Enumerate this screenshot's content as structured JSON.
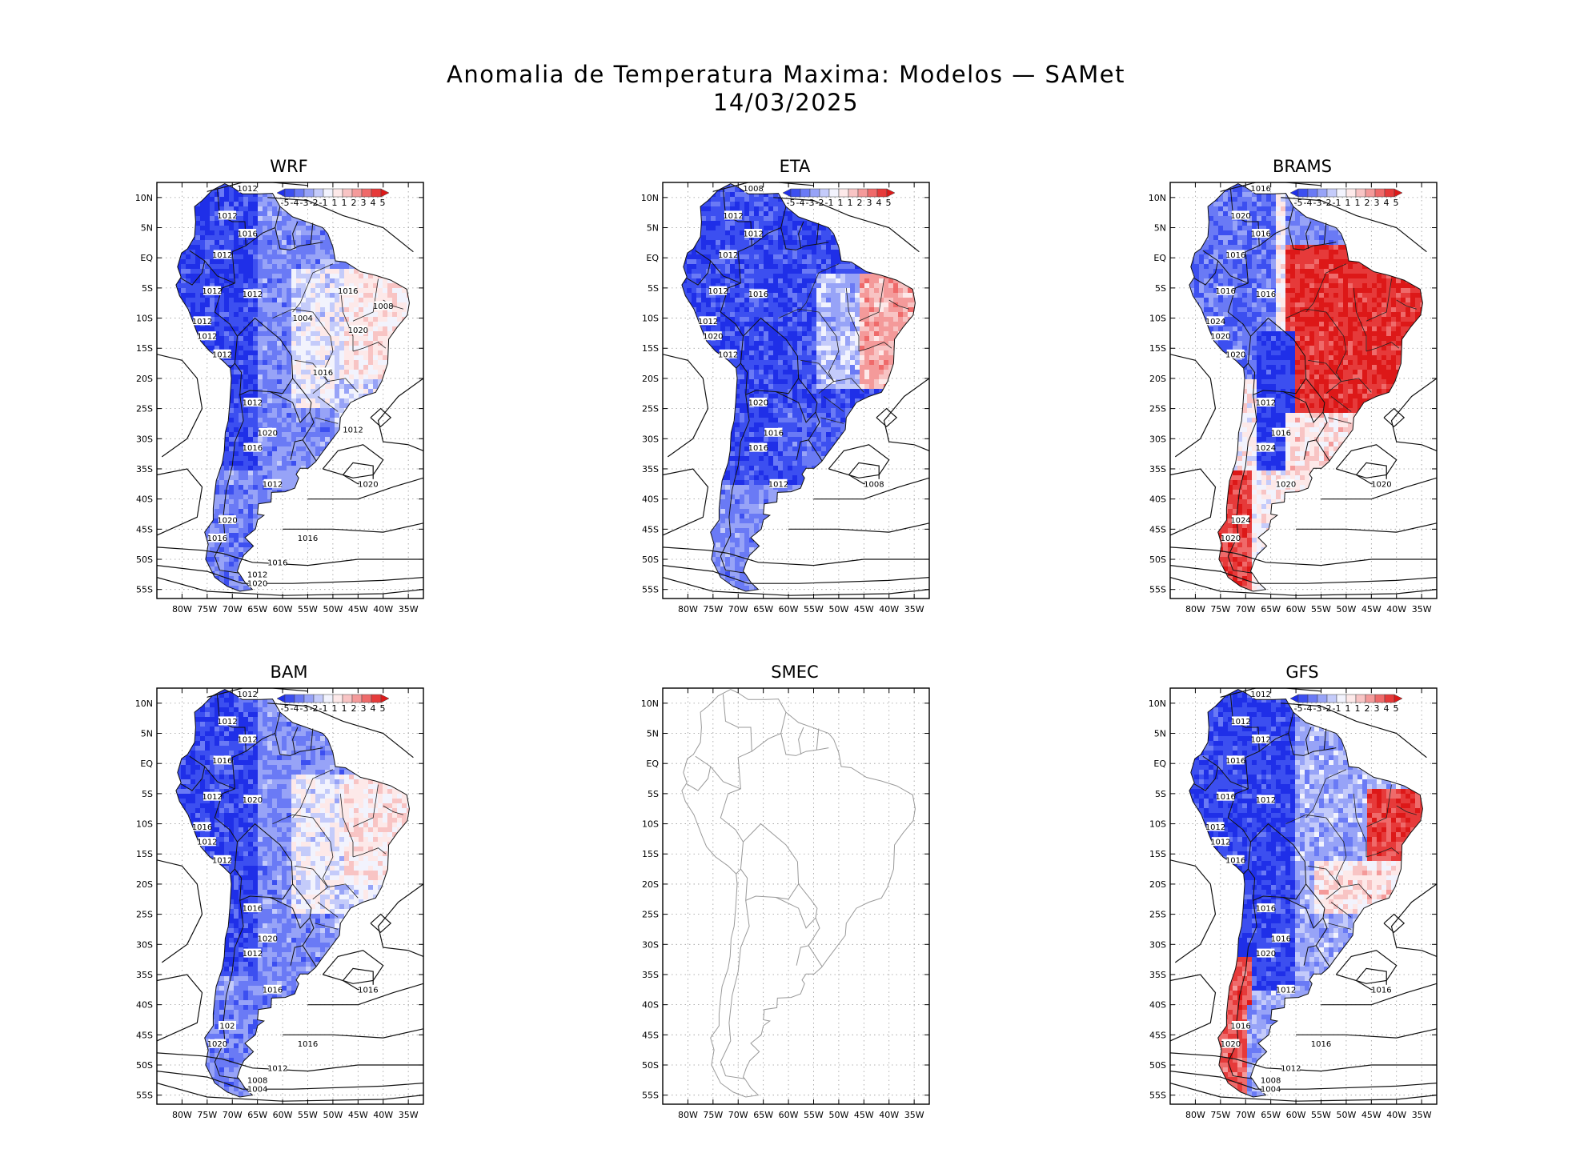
{
  "title_line1": "Anomalia de Temperatura Maxima: Modelos — SAMet",
  "title_line2": "14/03/2025",
  "lat_labels": [
    "10N",
    "5N",
    "EQ",
    "5S",
    "10S",
    "15S",
    "20S",
    "25S",
    "30S",
    "35S",
    "40S",
    "45S",
    "50S",
    "55S"
  ],
  "lon_labels": [
    "80W",
    "75W",
    "70W",
    "65W",
    "60W",
    "55W",
    "50W",
    "45W",
    "40W",
    "35W"
  ],
  "colorbar": {
    "labels": [
      "-5",
      "-4",
      "-3",
      "-2",
      "-1",
      "1",
      "1",
      "2",
      "3",
      "4",
      "5"
    ],
    "colors": [
      "#1f2fe8",
      "#3c4ff0",
      "#6a7af5",
      "#97a3f7",
      "#c4cbfa",
      "#f2f3fd",
      "#fde9e9",
      "#f8c4c4",
      "#f49a9a",
      "#ef6a6a",
      "#e63a3a",
      "#dd1818"
    ]
  },
  "panels": [
    {
      "name": "WRF",
      "has_data": true,
      "pattern": "mostly_cold",
      "isobars": [
        "1012",
        "1012",
        "1016",
        "1012",
        "1012",
        "1012",
        "1012",
        "1012",
        "1012",
        "1012",
        "1020",
        "1016",
        "1012",
        "1020",
        "1020",
        "1016",
        "1016",
        "1016",
        "1012",
        "1020",
        "1016",
        "1020",
        "1016",
        "1012",
        "1008",
        "1004"
      ]
    },
    {
      "name": "ETA",
      "has_data": true,
      "pattern": "cold_warm_east",
      "isobars": [
        "1008",
        "1012",
        "1012",
        "1012",
        "1016",
        "1012",
        "1012",
        "1020",
        "1012",
        "1020",
        "1016",
        "1016",
        "1012",
        "1008"
      ]
    },
    {
      "name": "BRAMS",
      "has_data": true,
      "pattern": "warm_brazil",
      "isobars": [
        "1016",
        "1020",
        "1016",
        "1016",
        "1016",
        "1016",
        "1024",
        "1020",
        "1020",
        "1012",
        "1016",
        "1024",
        "1020",
        "1020",
        "1024",
        "1020"
      ]
    },
    {
      "name": "BAM",
      "has_data": true,
      "pattern": "mostly_cold",
      "isobars": [
        "1012",
        "1012",
        "1012",
        "1016",
        "1020",
        "1012",
        "1016",
        "1012",
        "1012",
        "1016",
        "1020",
        "1012",
        "1016",
        "1016",
        "102",
        "1020",
        "1016",
        "1012",
        "1008",
        "1004"
      ]
    },
    {
      "name": "SMEC",
      "has_data": false,
      "pattern": "empty",
      "isobars": []
    },
    {
      "name": "GFS",
      "has_data": true,
      "pattern": "cold_warm_ne",
      "isobars": [
        "1012",
        "1012",
        "1012",
        "1016",
        "1012",
        "1016",
        "1012",
        "1012",
        "1016",
        "1016",
        "1016",
        "1020",
        "1012",
        "1016",
        "1016",
        "1020",
        "1016",
        "1012",
        "1008",
        "1004"
      ]
    }
  ]
}
